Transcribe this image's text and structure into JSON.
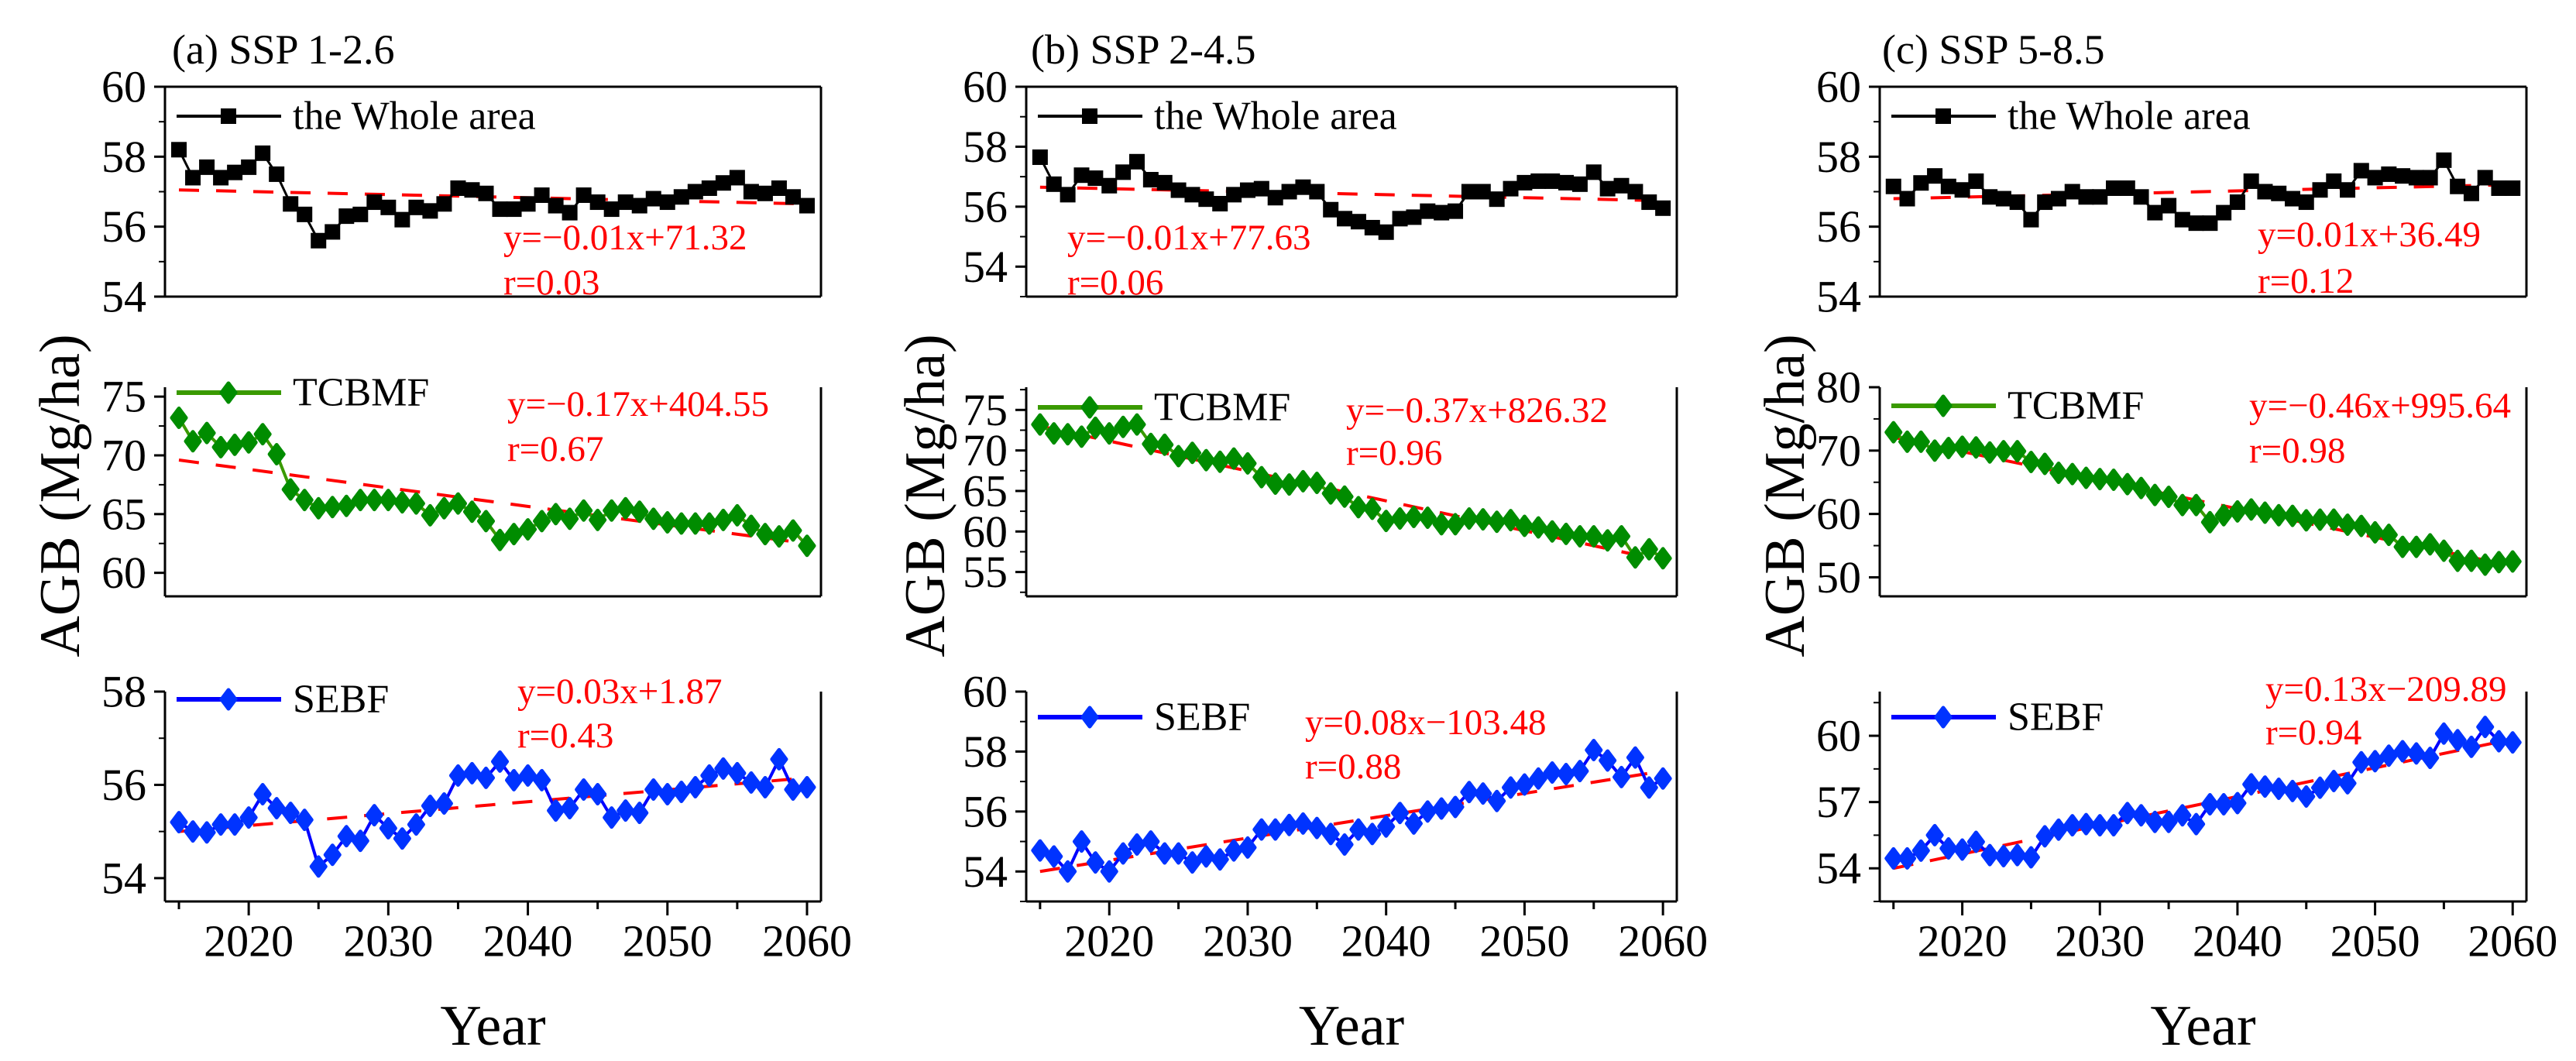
{
  "figure": {
    "ylabel": "AGB (Mg/ha)",
    "xlabel": "Year",
    "xticks": [
      2020,
      2030,
      2040,
      2050,
      2060
    ],
    "xticklabels": [
      "2020",
      "2030",
      "2040",
      "2050",
      "2060"
    ]
  },
  "chart_data": [
    {
      "type": "line",
      "column": 0,
      "row": 0,
      "title": "(a) SSP 1-2.6",
      "legend": "the Whole area",
      "color": "#000000",
      "marker": "square",
      "x_start": 2015,
      "x_end": 2060,
      "xlim": [
        2014,
        2061
      ],
      "ylim": [
        54,
        60
      ],
      "yticks": [
        54,
        56,
        58,
        60
      ],
      "yticklabels": [
        "54",
        "56",
        "58",
        "60"
      ],
      "values": [
        58.2,
        57.4,
        57.7,
        57.4,
        57.55,
        57.7,
        58.1,
        57.5,
        56.65,
        56.35,
        55.6,
        55.85,
        56.3,
        56.35,
        56.7,
        56.55,
        56.2,
        56.55,
        56.45,
        56.65,
        57.1,
        57.05,
        56.95,
        56.5,
        56.5,
        56.65,
        56.9,
        56.6,
        56.4,
        56.9,
        56.7,
        56.5,
        56.7,
        56.6,
        56.8,
        56.7,
        56.85,
        57.0,
        57.1,
        57.25,
        57.4,
        57.0,
        56.95,
        57.1,
        56.85,
        56.6
      ],
      "trend": {
        "equation": "y=−0.01x+71.32",
        "r": "r=0.03",
        "start": 57.05,
        "end": 56.65,
        "color": "#ff0000"
      }
    },
    {
      "type": "line",
      "column": 0,
      "row": 1,
      "legend": "TCBMF",
      "color": "#3a9a00",
      "marker_color": "#008c00",
      "marker": "diamond",
      "x_start": 2015,
      "x_end": 2060,
      "xlim": [
        2014,
        2061
      ],
      "ylim": [
        58,
        75.8
      ],
      "yticks": [
        60,
        65,
        70,
        75
      ],
      "yticklabels": [
        "60",
        "65",
        "70",
        "75"
      ],
      "values": [
        73.2,
        71.2,
        71.9,
        70.7,
        70.9,
        71.1,
        71.8,
        70.1,
        67.1,
        66.2,
        65.5,
        65.6,
        65.7,
        66.2,
        66.2,
        66.2,
        66.0,
        65.9,
        64.9,
        65.5,
        65.9,
        65.2,
        64.4,
        62.8,
        63.3,
        63.7,
        64.4,
        65.0,
        64.6,
        65.3,
        64.5,
        65.3,
        65.5,
        65.2,
        64.6,
        64.3,
        64.2,
        64.2,
        64.2,
        64.5,
        64.9,
        64.0,
        63.3,
        63.1,
        63.6,
        62.3
      ],
      "trend": {
        "equation": "y=−0.17x+404.55",
        "r": "r=0.67",
        "start": 69.6,
        "end": 62.5,
        "color": "#ff0000"
      }
    },
    {
      "type": "line",
      "column": 0,
      "row": 2,
      "legend": "SEBF",
      "color": "#0000ff",
      "marker_color": "#0033ff",
      "marker": "diamond",
      "x_start": 2015,
      "x_end": 2060,
      "xlim": [
        2014,
        2061
      ],
      "ylim": [
        53.5,
        58
      ],
      "yticks": [
        54,
        56,
        58
      ],
      "yticklabels": [
        "54",
        "56",
        "58"
      ],
      "values": [
        55.2,
        55.0,
        54.98,
        55.15,
        55.15,
        55.3,
        55.8,
        55.5,
        55.4,
        55.25,
        54.25,
        54.5,
        54.9,
        54.8,
        55.35,
        55.07,
        54.85,
        55.15,
        55.55,
        55.6,
        56.2,
        56.25,
        56.15,
        56.5,
        56.1,
        56.2,
        56.1,
        55.45,
        55.5,
        55.9,
        55.8,
        55.3,
        55.45,
        55.4,
        55.9,
        55.8,
        55.85,
        55.95,
        56.2,
        56.35,
        56.25,
        56.05,
        55.95,
        56.55,
        55.9,
        55.95
      ],
      "trend": {
        "equation": "y=0.03x+1.87",
        "r": "r=0.43",
        "start": 55.0,
        "end": 56.15,
        "color": "#ff0000"
      }
    },
    {
      "type": "line",
      "column": 1,
      "row": 0,
      "title": "(b) SSP 2-4.5",
      "legend": "the Whole area",
      "color": "#000000",
      "marker": "square",
      "x_start": 2015,
      "x_end": 2060,
      "xlim": [
        2014,
        2061
      ],
      "ylim": [
        53,
        60
      ],
      "yticks": [
        54,
        56,
        58,
        60
      ],
      "yticklabels": [
        "54",
        "56",
        "58",
        "60"
      ],
      "values": [
        57.65,
        56.75,
        56.4,
        57.05,
        56.95,
        56.7,
        57.15,
        57.5,
        56.9,
        56.8,
        56.55,
        56.4,
        56.25,
        56.1,
        56.4,
        56.55,
        56.6,
        56.3,
        56.5,
        56.65,
        56.5,
        55.9,
        55.6,
        55.5,
        55.3,
        55.15,
        55.6,
        55.65,
        55.85,
        55.8,
        55.85,
        56.5,
        56.5,
        56.25,
        56.6,
        56.8,
        56.85,
        56.85,
        56.8,
        56.75,
        57.15,
        56.6,
        56.7,
        56.5,
        56.15,
        55.95
      ],
      "trend": {
        "equation": "y=−0.01x+77.63",
        "r": "r=0.06",
        "start": 56.65,
        "end": 56.2,
        "color": "#ff0000"
      }
    },
    {
      "type": "line",
      "column": 1,
      "row": 1,
      "legend": "TCBMF",
      "color": "#3a9a00",
      "marker_color": "#008c00",
      "marker": "diamond",
      "x_start": 2015,
      "x_end": 2060,
      "xlim": [
        2014,
        2061
      ],
      "ylim": [
        52,
        77.8
      ],
      "yticks": [
        55,
        60,
        65,
        70,
        75
      ],
      "yticklabels": [
        "55",
        "60",
        "65",
        "70",
        "75"
      ],
      "values": [
        73.2,
        72.1,
        72.0,
        71.7,
        72.8,
        72.1,
        72.9,
        73.2,
        70.8,
        70.7,
        69.3,
        69.7,
        68.8,
        68.6,
        69.0,
        68.4,
        66.7,
        65.9,
        65.8,
        66.2,
        66.0,
        64.7,
        64.3,
        63.0,
        62.8,
        61.3,
        61.6,
        61.8,
        61.7,
        60.9,
        60.9,
        61.6,
        61.5,
        61.2,
        61.4,
        60.7,
        60.5,
        60.0,
        59.7,
        59.4,
        59.4,
        58.9,
        59.4,
        56.8,
        57.8,
        56.7
      ],
      "trend": {
        "equation": "y=−0.37x+826.32",
        "r": "r=0.96",
        "start": 73.0,
        "end": 56.4,
        "color": "#ff0000"
      }
    },
    {
      "type": "line",
      "column": 1,
      "row": 2,
      "legend": "SEBF",
      "color": "#0000ff",
      "marker_color": "#0033ff",
      "marker": "diamond",
      "x_start": 2015,
      "x_end": 2060,
      "xlim": [
        2014,
        2061
      ],
      "ylim": [
        53,
        60
      ],
      "yticks": [
        54,
        56,
        58,
        60
      ],
      "yticklabels": [
        "54",
        "56",
        "58",
        "60"
      ],
      "values": [
        54.7,
        54.5,
        54.0,
        55.0,
        54.3,
        54.0,
        54.6,
        54.9,
        55.0,
        54.6,
        54.6,
        54.3,
        54.5,
        54.4,
        54.7,
        54.8,
        55.4,
        55.4,
        55.55,
        55.6,
        55.45,
        55.25,
        54.9,
        55.4,
        55.25,
        55.5,
        55.95,
        55.6,
        56.0,
        56.1,
        56.15,
        56.65,
        56.6,
        56.35,
        56.8,
        56.9,
        57.1,
        57.3,
        57.25,
        57.35,
        58.05,
        57.7,
        57.15,
        57.8,
        56.8,
        57.1
      ],
      "trend": {
        "equation": "y=0.08x−103.48",
        "r": "r=0.88",
        "start": 54.0,
        "end": 57.35,
        "color": "#ff0000"
      }
    },
    {
      "type": "line",
      "column": 2,
      "row": 0,
      "title": "(c) SSP 5-8.5",
      "legend": "the Whole area",
      "color": "#000000",
      "marker": "square",
      "x_start": 2015,
      "x_end": 2060,
      "xlim": [
        2014,
        2061
      ],
      "ylim": [
        54,
        60
      ],
      "yticks": [
        54,
        56,
        58,
        60
      ],
      "yticklabels": [
        "54",
        "56",
        "58",
        "60"
      ],
      "values": [
        57.15,
        56.8,
        57.25,
        57.45,
        57.15,
        57.05,
        57.3,
        56.85,
        56.8,
        56.7,
        56.2,
        56.7,
        56.8,
        57.0,
        56.85,
        56.85,
        57.1,
        57.1,
        56.85,
        56.4,
        56.6,
        56.2,
        56.1,
        56.1,
        56.4,
        56.7,
        57.3,
        57.0,
        56.95,
        56.8,
        56.7,
        57.05,
        57.3,
        57.05,
        57.6,
        57.4,
        57.5,
        57.45,
        57.4,
        57.4,
        57.9,
        57.15,
        56.95,
        57.4,
        57.1,
        57.1
      ],
      "trend": {
        "equation": "y=0.01x+36.49",
        "r": "r=0.12",
        "start": 56.8,
        "end": 57.2,
        "color": "#ff0000"
      }
    },
    {
      "type": "line",
      "column": 2,
      "row": 1,
      "legend": "TCBMF",
      "color": "#3a9a00",
      "marker_color": "#008c00",
      "marker": "diamond",
      "x_start": 2015,
      "x_end": 2060,
      "xlim": [
        2014,
        2061
      ],
      "ylim": [
        47,
        80
      ],
      "yticks": [
        50,
        60,
        70,
        80
      ],
      "yticklabels": [
        "50",
        "60",
        "70",
        "80"
      ],
      "values": [
        72.9,
        71.4,
        71.4,
        70.0,
        70.4,
        70.6,
        70.5,
        69.7,
        69.9,
        69.9,
        68.2,
        67.9,
        66.5,
        66.3,
        65.7,
        65.5,
        65.4,
        64.7,
        64.1,
        63.0,
        62.7,
        61.4,
        61.4,
        58.7,
        59.8,
        60.4,
        60.7,
        60.2,
        59.8,
        59.7,
        59.0,
        59.1,
        59.1,
        58.3,
        58.1,
        57.1,
        56.7,
        54.8,
        54.8,
        55.2,
        54.2,
        52.6,
        52.6,
        52.0,
        52.4,
        52.5
      ],
      "trend": {
        "equation": "y=−0.46x+995.64",
        "r": "r=0.98",
        "start": 72.1,
        "end": 51.8,
        "color": "#ff0000"
      }
    },
    {
      "type": "line",
      "column": 2,
      "row": 2,
      "legend": "SEBF",
      "color": "#0000ff",
      "marker_color": "#0033ff",
      "marker": "diamond",
      "x_start": 2015,
      "x_end": 2060,
      "xlim": [
        2014,
        2061
      ],
      "ylim": [
        52.5,
        62
      ],
      "yticks": [
        54,
        57,
        60
      ],
      "yticklabels": [
        "54",
        "57",
        "60"
      ],
      "values": [
        54.45,
        54.45,
        54.8,
        55.5,
        54.9,
        54.85,
        55.2,
        54.6,
        54.55,
        54.6,
        54.5,
        55.45,
        55.75,
        55.95,
        56.0,
        55.95,
        55.95,
        56.5,
        56.4,
        56.1,
        56.1,
        56.4,
        56.0,
        56.9,
        56.9,
        56.95,
        57.8,
        57.7,
        57.6,
        57.5,
        57.25,
        57.65,
        57.95,
        57.85,
        58.8,
        58.85,
        59.1,
        59.3,
        59.2,
        59.0,
        60.1,
        59.8,
        59.5,
        60.4,
        59.75,
        59.7
      ],
      "trend": {
        "equation": "y=0.13x−209.89",
        "r": "r=0.94",
        "start": 54.0,
        "end": 59.85,
        "color": "#ff0000"
      }
    }
  ]
}
